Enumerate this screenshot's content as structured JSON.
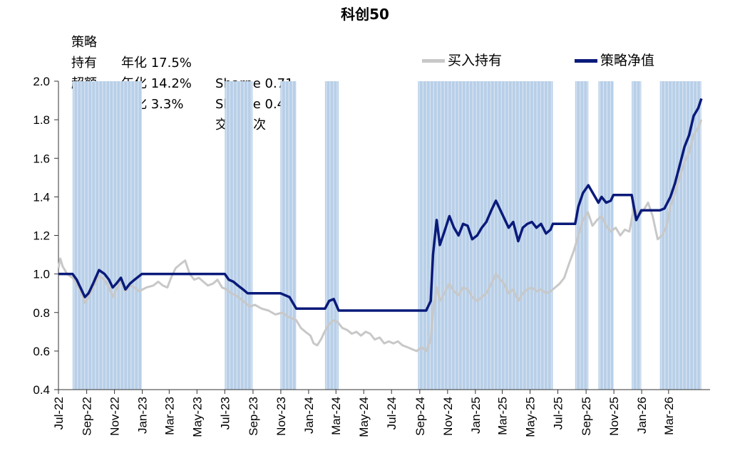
{
  "chart_data": {
    "type": "line",
    "title": "科创50",
    "ylim": [
      0.4,
      2.0
    ],
    "y_ticks": [
      "0.4",
      "0.6",
      "0.8",
      "1.0",
      "1.2",
      "1.4",
      "1.6",
      "1.8",
      "2.0"
    ],
    "x_range": [
      "2022-07-01",
      "2026-05-31"
    ],
    "x_ticks": [
      "Jul-22",
      "Sep-22",
      "Nov-22",
      "Jan-23",
      "Mar-23",
      "May-23",
      "Jul-23",
      "Sep-23",
      "Nov-23",
      "Jan-24",
      "Mar-24",
      "May-24",
      "Jul-24",
      "Sep-24",
      "Nov-24",
      "Jan-25",
      "Mar-25",
      "May-25",
      "Jul-25",
      "Sep-25",
      "Nov-25",
      "Jan-26",
      "Mar-26"
    ],
    "x_tick_dates": [
      "2022-07-01",
      "2022-09-01",
      "2022-11-01",
      "2023-01-01",
      "2023-03-01",
      "2023-05-01",
      "2023-07-01",
      "2023-09-01",
      "2023-11-01",
      "2024-01-01",
      "2024-03-01",
      "2024-05-01",
      "2024-07-01",
      "2024-09-01",
      "2024-11-01",
      "2025-01-01",
      "2025-03-01",
      "2025-05-01",
      "2025-07-01",
      "2025-09-01",
      "2025-11-01",
      "2026-01-01",
      "2026-03-01"
    ],
    "legend_position": "top-right",
    "shaded_periods": [
      [
        "2022-08-01",
        "2022-12-31"
      ],
      [
        "2023-07-01",
        "2023-08-31"
      ],
      [
        "2023-10-31",
        "2023-12-05"
      ],
      [
        "2024-02-06",
        "2024-03-07"
      ],
      [
        "2024-08-28",
        "2025-06-20"
      ],
      [
        "2025-08-08",
        "2025-09-06"
      ],
      [
        "2025-09-28",
        "2025-10-31"
      ],
      [
        "2025-12-10",
        "2025-12-31"
      ],
      [
        "2026-02-10",
        "2026-05-12"
      ]
    ],
    "series": [
      {
        "name": "买入持有",
        "color": "#c8c8c8",
        "points": [
          [
            "2022-07-01",
            1.03
          ],
          [
            "2022-07-05",
            1.08
          ],
          [
            "2022-07-10",
            1.04
          ],
          [
            "2022-07-20",
            1.0
          ],
          [
            "2022-08-01",
            0.98
          ],
          [
            "2022-08-10",
            0.95
          ],
          [
            "2022-08-20",
            0.9
          ],
          [
            "2022-08-28",
            0.85
          ],
          [
            "2022-09-05",
            0.88
          ],
          [
            "2022-09-15",
            0.93
          ],
          [
            "2022-09-28",
            0.99
          ],
          [
            "2022-10-10",
            0.97
          ],
          [
            "2022-10-20",
            0.93
          ],
          [
            "2022-10-28",
            0.88
          ],
          [
            "2022-11-05",
            0.92
          ],
          [
            "2022-11-15",
            0.96
          ],
          [
            "2022-11-25",
            0.91
          ],
          [
            "2022-12-05",
            0.94
          ],
          [
            "2022-12-15",
            0.93
          ],
          [
            "2022-12-25",
            0.91
          ],
          [
            "2023-01-10",
            0.93
          ],
          [
            "2023-01-25",
            0.94
          ],
          [
            "2023-02-05",
            0.96
          ],
          [
            "2023-02-15",
            0.94
          ],
          [
            "2023-02-25",
            0.93
          ],
          [
            "2023-03-05",
            0.98
          ],
          [
            "2023-03-15",
            1.03
          ],
          [
            "2023-03-25",
            1.05
          ],
          [
            "2023-04-05",
            1.07
          ],
          [
            "2023-04-15",
            1.0
          ],
          [
            "2023-04-25",
            0.97
          ],
          [
            "2023-05-05",
            0.98
          ],
          [
            "2023-05-15",
            0.96
          ],
          [
            "2023-05-25",
            0.94
          ],
          [
            "2023-06-05",
            0.95
          ],
          [
            "2023-06-15",
            0.97
          ],
          [
            "2023-06-25",
            0.93
          ],
          [
            "2023-07-05",
            0.92
          ],
          [
            "2023-07-15",
            0.9
          ],
          [
            "2023-07-25",
            0.89
          ],
          [
            "2023-08-05",
            0.87
          ],
          [
            "2023-08-15",
            0.85
          ],
          [
            "2023-08-25",
            0.83
          ],
          [
            "2023-09-05",
            0.84
          ],
          [
            "2023-09-20",
            0.82
          ],
          [
            "2023-10-05",
            0.81
          ],
          [
            "2023-10-20",
            0.79
          ],
          [
            "2023-11-05",
            0.8
          ],
          [
            "2023-11-15",
            0.78
          ],
          [
            "2023-11-25",
            0.77
          ],
          [
            "2023-12-05",
            0.76
          ],
          [
            "2023-12-15",
            0.72
          ],
          [
            "2023-12-25",
            0.7
          ],
          [
            "2024-01-05",
            0.68
          ],
          [
            "2024-01-12",
            0.64
          ],
          [
            "2024-01-20",
            0.63
          ],
          [
            "2024-01-28",
            0.66
          ],
          [
            "2024-02-05",
            0.7
          ],
          [
            "2024-02-15",
            0.74
          ],
          [
            "2024-02-25",
            0.76
          ],
          [
            "2024-03-05",
            0.75
          ],
          [
            "2024-03-15",
            0.72
          ],
          [
            "2024-03-25",
            0.71
          ],
          [
            "2024-04-05",
            0.69
          ],
          [
            "2024-04-15",
            0.7
          ],
          [
            "2024-04-25",
            0.68
          ],
          [
            "2024-05-05",
            0.7
          ],
          [
            "2024-05-15",
            0.69
          ],
          [
            "2024-05-25",
            0.66
          ],
          [
            "2024-06-05",
            0.67
          ],
          [
            "2024-06-15",
            0.64
          ],
          [
            "2024-06-25",
            0.65
          ],
          [
            "2024-07-05",
            0.64
          ],
          [
            "2024-07-15",
            0.65
          ],
          [
            "2024-07-25",
            0.63
          ],
          [
            "2024-08-05",
            0.62
          ],
          [
            "2024-08-15",
            0.61
          ],
          [
            "2024-08-25",
            0.6
          ],
          [
            "2024-09-05",
            0.62
          ],
          [
            "2024-09-15",
            0.6
          ],
          [
            "2024-09-25",
            0.66
          ],
          [
            "2024-09-30",
            0.8
          ],
          [
            "2024-10-08",
            0.93
          ],
          [
            "2024-10-15",
            0.86
          ],
          [
            "2024-10-25",
            0.9
          ],
          [
            "2024-11-05",
            0.95
          ],
          [
            "2024-11-15",
            0.91
          ],
          [
            "2024-11-25",
            0.89
          ],
          [
            "2024-12-05",
            0.93
          ],
          [
            "2024-12-15",
            0.92
          ],
          [
            "2024-12-25",
            0.88
          ],
          [
            "2025-01-05",
            0.86
          ],
          [
            "2025-01-15",
            0.88
          ],
          [
            "2025-01-25",
            0.9
          ],
          [
            "2025-02-05",
            0.95
          ],
          [
            "2025-02-15",
            1.0
          ],
          [
            "2025-02-25",
            0.97
          ],
          [
            "2025-03-05",
            0.95
          ],
          [
            "2025-03-15",
            0.9
          ],
          [
            "2025-03-25",
            0.92
          ],
          [
            "2025-04-05",
            0.86
          ],
          [
            "2025-04-15",
            0.9
          ],
          [
            "2025-04-25",
            0.92
          ],
          [
            "2025-05-05",
            0.93
          ],
          [
            "2025-05-15",
            0.91
          ],
          [
            "2025-05-25",
            0.92
          ],
          [
            "2025-06-05",
            0.9
          ],
          [
            "2025-06-15",
            0.91
          ],
          [
            "2025-06-25",
            0.93
          ],
          [
            "2025-07-05",
            0.95
          ],
          [
            "2025-07-15",
            0.98
          ],
          [
            "2025-07-25",
            1.05
          ],
          [
            "2025-08-05",
            1.12
          ],
          [
            "2025-08-15",
            1.2
          ],
          [
            "2025-08-25",
            1.28
          ],
          [
            "2025-09-05",
            1.32
          ],
          [
            "2025-09-15",
            1.25
          ],
          [
            "2025-09-25",
            1.28
          ],
          [
            "2025-10-05",
            1.3
          ],
          [
            "2025-10-15",
            1.25
          ],
          [
            "2025-10-25",
            1.22
          ],
          [
            "2025-11-05",
            1.24
          ],
          [
            "2025-11-15",
            1.2
          ],
          [
            "2025-11-25",
            1.23
          ],
          [
            "2025-12-05",
            1.22
          ],
          [
            "2025-12-15",
            1.35
          ],
          [
            "2025-12-25",
            1.3
          ],
          [
            "2026-01-05",
            1.33
          ],
          [
            "2026-01-15",
            1.37
          ],
          [
            "2026-01-25",
            1.3
          ],
          [
            "2026-02-05",
            1.18
          ],
          [
            "2026-02-15",
            1.2
          ],
          [
            "2026-02-25",
            1.25
          ],
          [
            "2026-03-05",
            1.35
          ],
          [
            "2026-03-15",
            1.42
          ],
          [
            "2026-03-25",
            1.5
          ],
          [
            "2026-04-05",
            1.58
          ],
          [
            "2026-04-15",
            1.63
          ],
          [
            "2026-04-25",
            1.72
          ],
          [
            "2026-05-05",
            1.76
          ],
          [
            "2026-05-12",
            1.8
          ]
        ]
      },
      {
        "name": "策略净值",
        "color": "#0a1a7a",
        "points": [
          [
            "2022-07-01",
            1.0
          ],
          [
            "2022-08-01",
            1.0
          ],
          [
            "2022-08-10",
            0.97
          ],
          [
            "2022-08-20",
            0.92
          ],
          [
            "2022-08-28",
            0.88
          ],
          [
            "2022-09-05",
            0.9
          ],
          [
            "2022-09-15",
            0.95
          ],
          [
            "2022-09-28",
            1.02
          ],
          [
            "2022-10-10",
            1.0
          ],
          [
            "2022-10-20",
            0.97
          ],
          [
            "2022-10-28",
            0.93
          ],
          [
            "2022-11-05",
            0.95
          ],
          [
            "2022-11-15",
            0.98
          ],
          [
            "2022-11-25",
            0.92
          ],
          [
            "2022-12-05",
            0.95
          ],
          [
            "2022-12-15",
            0.97
          ],
          [
            "2022-12-31",
            1.0
          ],
          [
            "2023-07-01",
            1.0
          ],
          [
            "2023-07-10",
            0.97
          ],
          [
            "2023-07-20",
            0.96
          ],
          [
            "2023-07-30",
            0.94
          ],
          [
            "2023-08-10",
            0.92
          ],
          [
            "2023-08-20",
            0.9
          ],
          [
            "2023-08-31",
            0.9
          ],
          [
            "2023-10-31",
            0.9
          ],
          [
            "2023-11-10",
            0.89
          ],
          [
            "2023-11-20",
            0.88
          ],
          [
            "2023-12-05",
            0.82
          ],
          [
            "2024-02-06",
            0.82
          ],
          [
            "2024-02-15",
            0.86
          ],
          [
            "2024-02-25",
            0.87
          ],
          [
            "2024-03-07",
            0.81
          ],
          [
            "2024-08-28",
            0.81
          ],
          [
            "2024-09-15",
            0.81
          ],
          [
            "2024-09-25",
            0.86
          ],
          [
            "2024-09-30",
            1.1
          ],
          [
            "2024-10-08",
            1.28
          ],
          [
            "2024-10-15",
            1.15
          ],
          [
            "2024-10-25",
            1.22
          ],
          [
            "2024-11-05",
            1.3
          ],
          [
            "2024-11-15",
            1.24
          ],
          [
            "2024-11-25",
            1.2
          ],
          [
            "2024-12-05",
            1.26
          ],
          [
            "2024-12-15",
            1.25
          ],
          [
            "2024-12-25",
            1.18
          ],
          [
            "2025-01-05",
            1.2
          ],
          [
            "2025-01-15",
            1.24
          ],
          [
            "2025-01-25",
            1.27
          ],
          [
            "2025-02-05",
            1.33
          ],
          [
            "2025-02-15",
            1.38
          ],
          [
            "2025-02-25",
            1.33
          ],
          [
            "2025-03-05",
            1.29
          ],
          [
            "2025-03-15",
            1.24
          ],
          [
            "2025-03-25",
            1.27
          ],
          [
            "2025-04-05",
            1.17
          ],
          [
            "2025-04-15",
            1.24
          ],
          [
            "2025-04-25",
            1.26
          ],
          [
            "2025-05-05",
            1.27
          ],
          [
            "2025-05-15",
            1.24
          ],
          [
            "2025-05-25",
            1.26
          ],
          [
            "2025-06-05",
            1.21
          ],
          [
            "2025-06-15",
            1.23
          ],
          [
            "2025-06-20",
            1.26
          ],
          [
            "2025-08-08",
            1.26
          ],
          [
            "2025-08-15",
            1.35
          ],
          [
            "2025-08-25",
            1.42
          ],
          [
            "2025-09-06",
            1.46
          ],
          [
            "2025-09-28",
            1.37
          ],
          [
            "2025-10-05",
            1.4
          ],
          [
            "2025-10-15",
            1.37
          ],
          [
            "2025-10-25",
            1.38
          ],
          [
            "2025-10-31",
            1.41
          ],
          [
            "2025-12-10",
            1.41
          ],
          [
            "2025-12-20",
            1.28
          ],
          [
            "2025-12-31",
            1.33
          ],
          [
            "2026-02-10",
            1.33
          ],
          [
            "2026-02-20",
            1.34
          ],
          [
            "2026-03-05",
            1.4
          ],
          [
            "2026-03-15",
            1.47
          ],
          [
            "2026-03-25",
            1.56
          ],
          [
            "2026-04-05",
            1.66
          ],
          [
            "2026-04-15",
            1.72
          ],
          [
            "2026-04-25",
            1.82
          ],
          [
            "2026-05-05",
            1.86
          ],
          [
            "2026-05-12",
            1.91
          ]
        ]
      }
    ]
  },
  "stats": [
    {
      "label": "策略",
      "annual": "年化 17.5%",
      "metric": "Sharpe 0.71"
    },
    {
      "label": "持有",
      "annual": "年化 14.2%",
      "metric": "Sharpe 0.48"
    },
    {
      "label": "超额",
      "annual": "年化 3.3%",
      "metric": "交易 9次"
    }
  ]
}
